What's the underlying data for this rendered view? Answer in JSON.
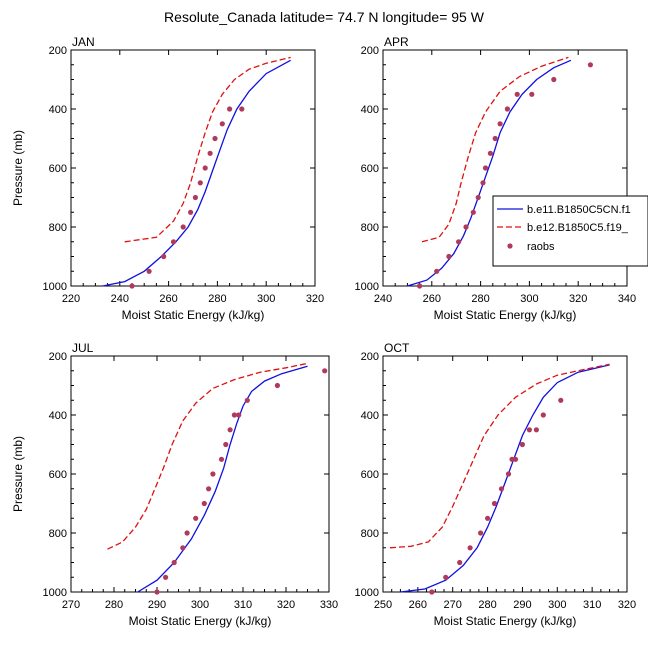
{
  "title": "Resolute_Canada  latitude= 74.7 N longitude= 95 W",
  "colors": {
    "series1": "#1010e0",
    "series2": "#e01010",
    "obs": "#b03a5b"
  },
  "legend": {
    "entries": [
      "b.e11.B1850C5CN.f1",
      "b.e12.B1850C5.f19_",
      "raobs"
    ]
  },
  "chart_data": [
    {
      "type": "line",
      "panel": "JAN",
      "xlabel": "Moist Static Energy (kJ/kg)",
      "ylabel": "Pressure (mb)",
      "xlim": [
        220,
        320
      ],
      "ylim": [
        1000,
        200
      ],
      "xticks": [
        "220",
        "240",
        "260",
        "280",
        "300",
        "320"
      ],
      "yticks": [
        "200",
        "400",
        "600",
        "800",
        "1000"
      ],
      "series": [
        {
          "name": "b.e11.B1850C5CN.f1",
          "style": "solid",
          "color": "#1010e0",
          "x": [
            233,
            242,
            250,
            257,
            263,
            268,
            272,
            275,
            278,
            281,
            284,
            288,
            293,
            300,
            310
          ],
          "y": [
            1000,
            985,
            950,
            900,
            850,
            800,
            740,
            680,
            610,
            540,
            470,
            400,
            340,
            280,
            235
          ]
        },
        {
          "name": "b.e12.B1850C5.f19_",
          "style": "dashed",
          "color": "#e01010",
          "x": [
            242,
            255,
            262,
            266,
            269,
            272,
            275,
            278,
            282,
            287,
            293,
            300,
            310
          ],
          "y": [
            850,
            835,
            780,
            720,
            650,
            560,
            480,
            410,
            350,
            300,
            265,
            245,
            225
          ]
        }
      ],
      "points": {
        "name": "raobs",
        "color": "#b03a5b",
        "x": [
          245,
          252,
          258,
          262,
          266,
          269,
          271,
          273,
          275,
          277,
          279,
          282,
          285,
          290
        ],
        "y": [
          1000,
          950,
          900,
          850,
          800,
          750,
          700,
          650,
          600,
          550,
          500,
          450,
          400,
          400
        ]
      }
    },
    {
      "type": "line",
      "panel": "APR",
      "xlabel": "Moist Static Energy (kJ/kg)",
      "ylabel": "",
      "xlim": [
        240,
        340
      ],
      "ylim": [
        1000,
        200
      ],
      "xticks": [
        "240",
        "260",
        "280",
        "300",
        "320",
        "340"
      ],
      "yticks": [
        "200",
        "400",
        "600",
        "800",
        "1000"
      ],
      "series": [
        {
          "name": "b.e11.B1850C5CN.f1",
          "style": "solid",
          "color": "#1010e0",
          "x": [
            250,
            258,
            264,
            269,
            273,
            276,
            279,
            282,
            285,
            288,
            292,
            297,
            303,
            310,
            317
          ],
          "y": [
            1000,
            980,
            940,
            890,
            830,
            770,
            700,
            630,
            560,
            480,
            410,
            350,
            300,
            260,
            235
          ]
        },
        {
          "name": "b.e12.B1850C5.f19_",
          "style": "dashed",
          "color": "#e01010",
          "x": [
            256,
            263,
            267,
            270,
            272,
            275,
            278,
            282,
            288,
            296,
            305,
            316
          ],
          "y": [
            850,
            835,
            790,
            720,
            650,
            560,
            480,
            410,
            340,
            290,
            255,
            225
          ]
        }
      ],
      "points": {
        "name": "raobs",
        "color": "#b03a5b",
        "x": [
          255,
          262,
          267,
          271,
          274,
          277,
          279,
          281,
          282,
          284,
          286,
          288,
          291,
          295,
          301,
          310,
          325
        ],
        "y": [
          1000,
          950,
          900,
          850,
          800,
          750,
          700,
          650,
          600,
          550,
          500,
          450,
          400,
          350,
          350,
          300,
          250
        ]
      }
    },
    {
      "type": "line",
      "panel": "JUL",
      "xlabel": "Moist Static Energy (kJ/kg)",
      "ylabel": "Pressure (mb)",
      "xlim": [
        270,
        330
      ],
      "ylim": [
        1000,
        200
      ],
      "xticks": [
        "270",
        "280",
        "290",
        "300",
        "310",
        "320",
        "330"
      ],
      "yticks": [
        "200",
        "400",
        "600",
        "800",
        "1000"
      ],
      "series": [
        {
          "name": "b.e11.B1850C5CN.f1",
          "style": "solid",
          "color": "#1010e0",
          "x": [
            285.5,
            290,
            294,
            298,
            301,
            303.5,
            305.5,
            307,
            308.5,
            310,
            312,
            315,
            319,
            325
          ],
          "y": [
            1000,
            960,
            900,
            820,
            740,
            660,
            580,
            500,
            430,
            370,
            320,
            285,
            260,
            235
          ]
        },
        {
          "name": "b.e12.B1850C5.f19_",
          "style": "dashed",
          "color": "#e01010",
          "x": [
            278.5,
            282,
            285,
            287.5,
            289.5,
            291.5,
            293.5,
            296,
            299,
            303,
            308,
            314,
            320,
            325
          ],
          "y": [
            855,
            830,
            780,
            720,
            650,
            580,
            500,
            420,
            360,
            310,
            280,
            255,
            240,
            225
          ]
        }
      ],
      "points": {
        "name": "raobs",
        "color": "#b03a5b",
        "x": [
          290,
          292,
          294,
          296,
          297,
          299,
          301,
          302,
          303,
          305,
          306,
          307,
          308,
          309,
          311,
          318,
          329
        ],
        "y": [
          1000,
          950,
          900,
          850,
          800,
          750,
          700,
          650,
          600,
          550,
          500,
          450,
          400,
          400,
          350,
          300,
          250
        ]
      }
    },
    {
      "type": "line",
      "panel": "OCT",
      "xlabel": "Moist Static Energy (kJ/kg)",
      "ylabel": "",
      "xlim": [
        250,
        320
      ],
      "ylim": [
        1000,
        200
      ],
      "xticks": [
        "250",
        "260",
        "270",
        "280",
        "290",
        "300",
        "310",
        "320"
      ],
      "yticks": [
        "200",
        "400",
        "600",
        "800",
        "1000"
      ],
      "series": [
        {
          "name": "b.e11.B1850C5CN.f1",
          "style": "solid",
          "color": "#1010e0",
          "x": [
            255,
            262,
            268,
            273,
            277,
            280,
            282.5,
            285,
            287.5,
            290,
            293,
            296,
            300,
            306,
            315
          ],
          "y": [
            1000,
            990,
            960,
            910,
            850,
            780,
            710,
            630,
            550,
            470,
            400,
            340,
            290,
            255,
            230
          ]
        },
        {
          "name": "b.e12.B1850C5.f19_",
          "style": "dashed",
          "color": "#e01010",
          "x": [
            252,
            258,
            263,
            267,
            270,
            273,
            276,
            279,
            283,
            288,
            294,
            300,
            308,
            315
          ],
          "y": [
            850,
            845,
            830,
            780,
            710,
            630,
            550,
            470,
            400,
            340,
            295,
            265,
            245,
            228
          ]
        }
      ],
      "points": {
        "name": "raobs",
        "color": "#b03a5b",
        "x": [
          264,
          268,
          272,
          275,
          278,
          280,
          282,
          284,
          286,
          287,
          288,
          290,
          292,
          294,
          296,
          301
        ],
        "y": [
          1000,
          950,
          900,
          850,
          800,
          750,
          700,
          650,
          600,
          550,
          550,
          500,
          450,
          450,
          400,
          350
        ]
      }
    }
  ]
}
